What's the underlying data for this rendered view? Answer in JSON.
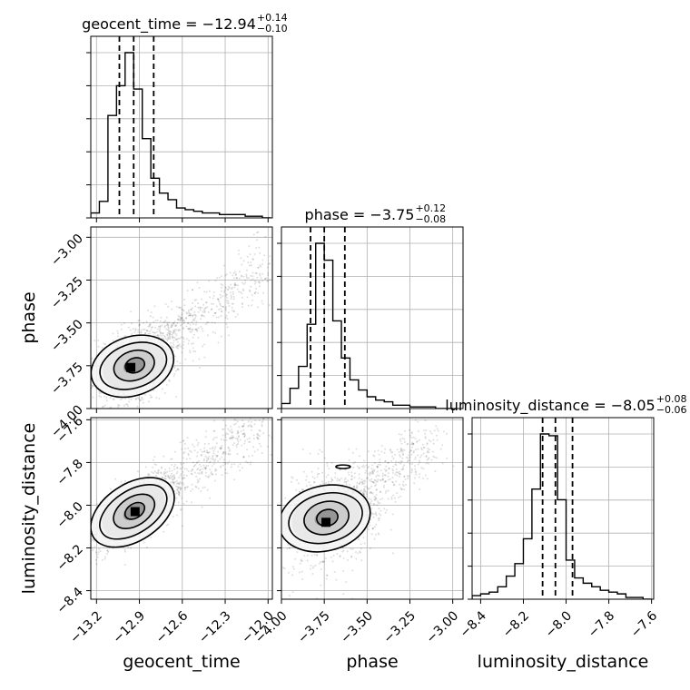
{
  "chart_data": {
    "type": "corner",
    "parameters": [
      "geocent_time",
      "phase",
      "luminosity_distance"
    ],
    "grid": true,
    "contour_levels_sigma": [
      0.5,
      1.0,
      1.5,
      2.0
    ],
    "quantiles": [
      0.16,
      0.5,
      0.84
    ],
    "axis_labels": {
      "geocent_time": "geocent_time",
      "phase": "phase",
      "luminosity_distance": "luminosity_distance"
    },
    "titles": [
      {
        "param": "geocent_time",
        "prefix": "geocent_time = ",
        "median": "−12.94",
        "plus": "+0.14",
        "minus": "−0.10"
      },
      {
        "param": "phase",
        "prefix": "phase = ",
        "median": "−3.75",
        "plus": "+0.12",
        "minus": "−0.08"
      },
      {
        "param": "luminosity_distance",
        "prefix": "luminosity_distance = ",
        "median": "−8.05",
        "plus": "+0.08",
        "minus": "−0.06"
      }
    ],
    "ranges": {
      "geocent_time": [
        -13.24,
        -11.97
      ],
      "phase": [
        -4.0,
        -2.94
      ],
      "luminosity_distance": [
        -8.44,
        -7.59
      ]
    },
    "ticks": {
      "geocent_time": {
        "values": [
          -13.2,
          -12.9,
          -12.6,
          -12.3,
          -12.0
        ],
        "labels": [
          "−13.2",
          "−12.9",
          "−12.6",
          "−12.3",
          "−12.0"
        ]
      },
      "phase": {
        "values": [
          -4.0,
          -3.75,
          -3.5,
          -3.25,
          -3.0
        ],
        "labels": [
          "−4.00",
          "−3.75",
          "−3.50",
          "−3.25",
          "−3.00"
        ]
      },
      "luminosity_distance": {
        "values": [
          -8.4,
          -8.2,
          -8.0,
          -7.8,
          -7.6
        ],
        "labels": [
          "−8.4",
          "−8.2",
          "−8.0",
          "−7.8",
          "−7.6"
        ]
      }
    },
    "histograms": {
      "geocent_time": {
        "edges": [
          -13.24,
          -13.18,
          -13.12,
          -13.06,
          -13.0,
          -12.94,
          -12.88,
          -12.82,
          -12.76,
          -12.7,
          -12.64,
          -12.58,
          -12.52,
          -12.46,
          -12.4,
          -12.34,
          -12.28,
          -12.22,
          -12.16,
          -12.1,
          -12.04,
          -11.98
        ],
        "counts": [
          3,
          10,
          62,
          80,
          100,
          78,
          48,
          24,
          15,
          11,
          6,
          5,
          4,
          3,
          3,
          2,
          2,
          2,
          1,
          1,
          0
        ],
        "quantile_values": [
          -13.04,
          -12.94,
          -12.8
        ]
      },
      "phase": {
        "edges": [
          -4.0,
          -3.95,
          -3.9,
          -3.85,
          -3.8,
          -3.75,
          -3.7,
          -3.65,
          -3.6,
          -3.55,
          -3.5,
          -3.45,
          -3.4,
          -3.35,
          -3.3,
          -3.25,
          -3.2,
          -3.15,
          -3.1,
          -3.05,
          -3.0
        ],
        "counts": [
          3,
          12,
          25,
          50,
          98,
          88,
          52,
          30,
          17,
          11,
          7,
          5,
          4,
          2,
          2,
          1,
          1,
          1,
          0,
          0
        ],
        "quantile_values": [
          -3.83,
          -3.75,
          -3.63
        ]
      },
      "luminosity_distance": {
        "edges": [
          -8.44,
          -8.4,
          -8.36,
          -8.32,
          -8.28,
          -8.24,
          -8.2,
          -8.16,
          -8.12,
          -8.08,
          -8.04,
          -8.0,
          -7.96,
          -7.92,
          -7.88,
          -7.84,
          -7.8,
          -7.76,
          -7.72,
          -7.68,
          -7.64,
          -7.6
        ],
        "counts": [
          2,
          3,
          4,
          7,
          13,
          20,
          34,
          62,
          93,
          92,
          56,
          22,
          12,
          9,
          7,
          5,
          4,
          3,
          1,
          1,
          0
        ],
        "quantile_values": [
          -8.11,
          -8.05,
          -7.97
        ]
      }
    },
    "joint": [
      {
        "x": "geocent_time",
        "y": "phase",
        "center": [
          -12.94,
          -3.75
        ],
        "sd": [
          0.11,
          0.09
        ],
        "rho": 0.35,
        "peak": [
          -12.96,
          -3.76
        ],
        "tail_to": [
          -12.0,
          -3.15
        ]
      },
      {
        "x": "geocent_time",
        "y": "luminosity_distance",
        "center": [
          -12.94,
          -8.03
        ],
        "sd": [
          0.12,
          0.07
        ],
        "rho": 0.75,
        "peak": [
          -12.93,
          -8.03
        ],
        "tail_to": [
          -12.0,
          -7.6
        ]
      },
      {
        "x": "phase",
        "y": "luminosity_distance",
        "center": [
          -3.74,
          -8.06
        ],
        "sd": [
          0.1,
          0.08
        ],
        "rho": 0.25,
        "peak": [
          -3.74,
          -8.08
        ],
        "tail_to": [
          -3.1,
          -7.7
        ],
        "island": [
          -3.64,
          -7.82
        ]
      }
    ]
  }
}
